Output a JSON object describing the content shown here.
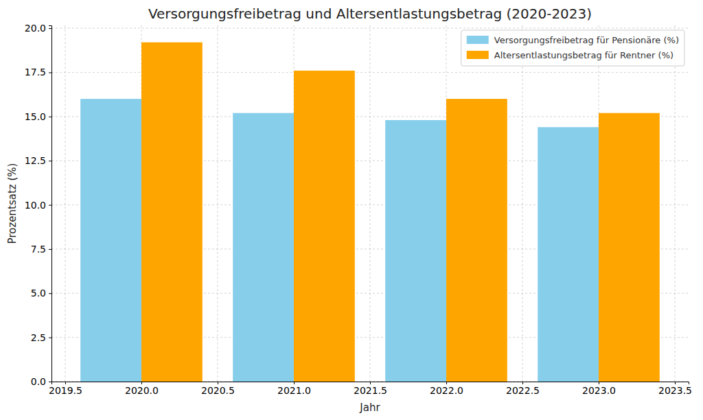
{
  "chart_data": {
    "type": "bar",
    "title": "Versorgungsfreibetrag und Altersentlastungsbetrag (2020-2023)",
    "x_label": "Jahr",
    "y_label": "Prozentsatz (%)",
    "x": [
      2020,
      2021,
      2022,
      2023
    ],
    "series": [
      {
        "name": "Versorgungsfreibetrag für Pensionäre (%)",
        "color": "#87ceeb",
        "values": [
          16.0,
          15.2,
          14.8,
          14.4
        ]
      },
      {
        "name": "Altersentlastungsbetrag für Rentner (%)",
        "color": "#ffa500",
        "values": [
          19.2,
          17.6,
          16.0,
          15.2
        ]
      }
    ],
    "xlim": [
      2019.41,
      2023.59
    ],
    "xticks": [
      2019.5,
      {
        "value": 2020,
        "label": "2020.0"
      },
      2020.5,
      {
        "value": 2021,
        "label": "2021.0"
      },
      2021.5,
      {
        "value": 2022,
        "label": "2022.0"
      },
      2022.5,
      {
        "value": 2023,
        "label": "2023.0"
      },
      2023.5
    ],
    "ylim": [
      0,
      20.16
    ],
    "yticks": [
      {
        "value": 0,
        "label": "0.0"
      },
      2.5,
      {
        "value": 5,
        "label": "5.0"
      },
      7.5,
      {
        "value": 10,
        "label": "10.0"
      },
      12.5,
      {
        "value": 15,
        "label": "15.0"
      },
      17.5,
      {
        "value": 20,
        "label": "20.0"
      }
    ],
    "grid": true,
    "legend": "upper right"
  }
}
